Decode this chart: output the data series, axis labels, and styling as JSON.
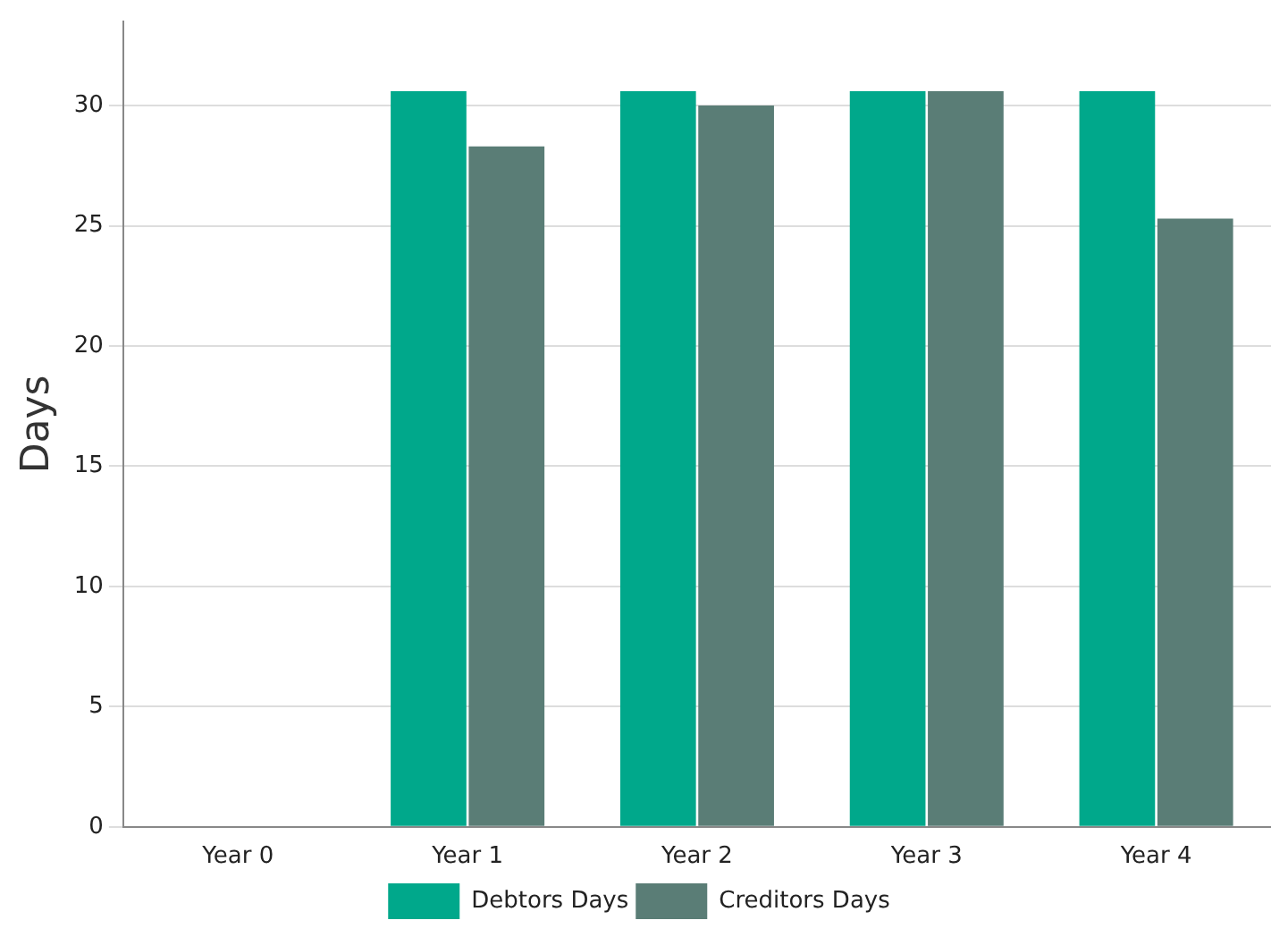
{
  "chart_data": {
    "type": "bar",
    "ylabel": "Days",
    "categories": [
      "Year 0",
      "Year 1",
      "Year 2",
      "Year 3",
      "Year 4"
    ],
    "series": [
      {
        "name": "Debtors Days",
        "color": "#00a88b",
        "values": [
          0,
          30.6,
          30.6,
          30.6,
          30.6
        ]
      },
      {
        "name": "Creditors Days",
        "color": "#5a7d76",
        "values": [
          0,
          28.3,
          30.0,
          30.6,
          25.3
        ]
      }
    ],
    "ylim": [
      0,
      33.5
    ],
    "yticks": [
      0,
      5,
      10,
      15,
      20,
      25,
      30
    ],
    "grid": "y",
    "legend": "bottom"
  }
}
